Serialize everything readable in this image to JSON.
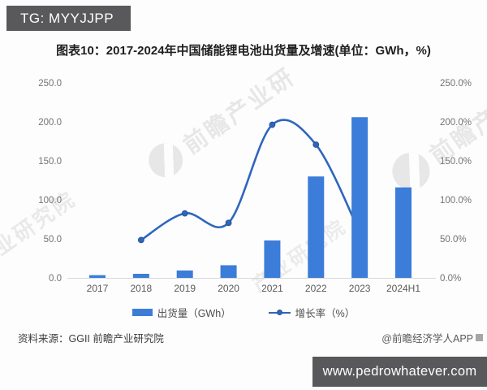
{
  "header": {
    "tg_badge": "TG: MYYJJPP"
  },
  "chart": {
    "title": "图表10：2017-2024年中国储能锂电池出货量及增速(单位：GWh，%)",
    "legend": [
      {
        "label": "出货量（GWh）",
        "type": "bar"
      },
      {
        "label": "增长率（%）",
        "type": "line"
      }
    ]
  },
  "chart_data": {
    "type": "bar+line",
    "categories": [
      "2017",
      "2018",
      "2019",
      "2020",
      "2021",
      "2022",
      "2023",
      "2024H1"
    ],
    "series": [
      {
        "name": "出货量（GWh）",
        "type": "bar",
        "axis": "left",
        "values": [
          3.5,
          5.2,
          9.5,
          16.2,
          48,
          130,
          206,
          116
        ]
      },
      {
        "name": "增长率（%）",
        "type": "line",
        "axis": "right",
        "values": [
          null,
          48.6,
          82.7,
          70.5,
          196.3,
          170.8,
          58.5,
          null
        ]
      }
    ],
    "left_axis": {
      "title": "GWh",
      "ticks": [
        "0.0",
        "50.0",
        "100.0",
        "150.0",
        "200.0",
        "250.0"
      ],
      "range": [
        0,
        250
      ]
    },
    "right_axis": {
      "title": "%",
      "ticks": [
        "0.0%",
        "50.0%",
        "100.0%",
        "150.0%",
        "200.0%",
        "250.0%"
      ],
      "range": [
        0,
        250
      ]
    },
    "grid": false,
    "legend_position": "bottom",
    "colors": {
      "bar": "#3b7dd8",
      "line": "#2f66bd",
      "marker_stroke": "#27549b",
      "axis_line": "#d9d9d9",
      "tick_label": "#737373",
      "category_label": "#595959"
    }
  },
  "watermarks": [
    {
      "text": "前瞻产业研",
      "logo": true
    },
    {
      "text": "前瞻产",
      "logo": true
    },
    {
      "text": "业研究院",
      "logo": false
    },
    {
      "text": "产业研究院",
      "logo": false
    }
  ],
  "footer": {
    "source": "资料来源：GGII 前瞻产业研究院",
    "credit": "@前瞻经济学人APP",
    "url_bar": "www.pedrowhatever.com"
  }
}
